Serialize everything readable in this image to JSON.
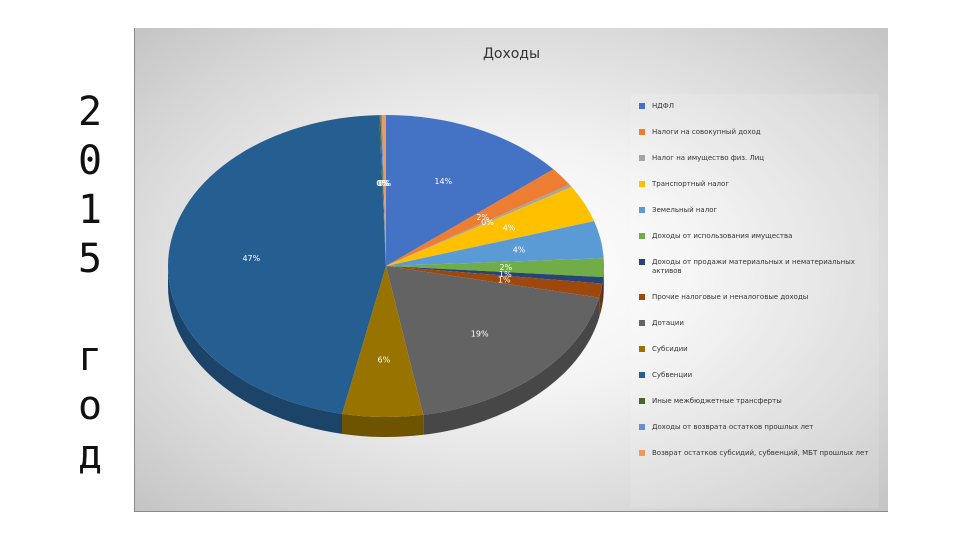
{
  "year_vertical": [
    "2",
    "0",
    "1",
    "5",
    "",
    "г",
    "о",
    "д"
  ],
  "chart_data": {
    "type": "pie",
    "title": "Доходы",
    "series": [
      {
        "name": "НДФЛ",
        "value": 14,
        "label": "14%",
        "color": "#4472c4"
      },
      {
        "name": "Налоги на совокупный доход",
        "value": 2,
        "label": "2%",
        "color": "#ed7d31"
      },
      {
        "name": "Налог на имущество физ. Лиц",
        "value": 0.3,
        "label": "0%",
        "color": "#a5a5a5"
      },
      {
        "name": "Транспортный налог",
        "value": 4,
        "label": "4%",
        "color": "#ffc000"
      },
      {
        "name": "Земельный налог",
        "value": 4,
        "label": "4%",
        "color": "#5b9bd5"
      },
      {
        "name": "Доходы от использования имущества",
        "value": 2,
        "label": "2%",
        "color": "#70ad47"
      },
      {
        "name": "Доходы от продажи материальных и нематериальных активов",
        "value": 0.7,
        "label": "1%",
        "color": "#264478"
      },
      {
        "name": "Прочие налоговые и неналоговые доходы",
        "value": 1.5,
        "label": "1%",
        "color": "#9e480e"
      },
      {
        "name": "Дотации",
        "value": 19,
        "label": "19%",
        "color": "#636363"
      },
      {
        "name": "Субсидии",
        "value": 6,
        "label": "6%",
        "color": "#997300"
      },
      {
        "name": "Субвенции",
        "value": 46.5,
        "label": "47%",
        "color": "#255e91"
      },
      {
        "name": "Иные межбюджетные трансферты",
        "value": 0.1,
        "label": "0%",
        "color": "#43682b"
      },
      {
        "name": "Доходы от возврата остатков прошлых лет",
        "value": 0.1,
        "label": "0%",
        "color": "#698ed0"
      },
      {
        "name": "Возврат остатков субсидий, субвенций, МБТ прошлых лет",
        "value": 0.3,
        "label": "0%",
        "color": "#f1975a"
      }
    ],
    "legend_position": "right",
    "grid": false
  }
}
